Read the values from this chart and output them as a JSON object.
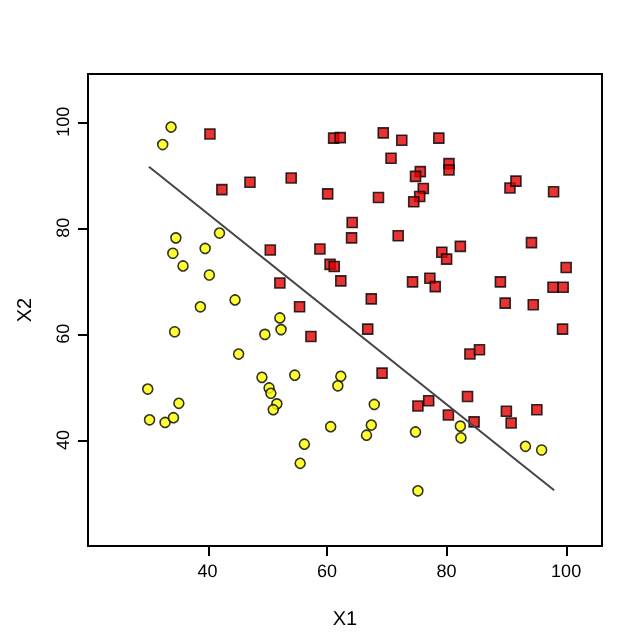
{
  "chart_data": {
    "type": "scatter",
    "xlabel": "X1",
    "ylabel": "X2",
    "xlim": [
      20,
      106
    ],
    "ylim": [
      20,
      109
    ],
    "xticks": [
      40,
      60,
      80,
      100
    ],
    "yticks": [
      40,
      60,
      80,
      100
    ],
    "grid": false,
    "series": [
      {
        "marker": "circle",
        "color": "#ffff00",
        "x": [
          33.9,
          32.5,
          34.7,
          34.2,
          35.9,
          40.3,
          39.6,
          42.0,
          38.8,
          44.6,
          52.1,
          52.3,
          49.6,
          34.5,
          45.2,
          30.0,
          49.1,
          50.3,
          50.6,
          35.2,
          54.6,
          51.6,
          51.0,
          30.3,
          32.9,
          34.3,
          60.6,
          56.2,
          55.5,
          62.3,
          61.8,
          67.9,
          67.4,
          66.6,
          74.8,
          75.2,
          82.3,
          82.4,
          93.2,
          95.9
        ],
        "values": [
          99.0,
          95.7,
          78.1,
          75.2,
          72.8,
          71.1,
          76.1,
          79.0,
          65.1,
          66.4,
          63.0,
          60.8,
          59.9,
          60.4,
          56.2,
          49.6,
          51.8,
          49.8,
          48.8,
          46.9,
          52.2,
          46.8,
          45.7,
          43.8,
          43.3,
          44.2,
          42.5,
          39.2,
          35.6,
          52.0,
          50.2,
          46.7,
          42.8,
          40.9,
          41.5,
          30.4,
          42.6,
          40.4,
          38.8,
          38.1
        ]
      },
      {
        "marker": "square",
        "color": "#e00000",
        "x": [
          40.4,
          42.4,
          47.1,
          54.0,
          60.1,
          61.1,
          50.5,
          58.8,
          60.5,
          61.2,
          52.1,
          55.4,
          57.3,
          62.2,
          69.4,
          72.5,
          78.7,
          70.7,
          75.6,
          74.8,
          80.4,
          80.4,
          76.1,
          75.5,
          74.5,
          68.6,
          90.6,
          91.6,
          97.9,
          64.2,
          64.1,
          71.9,
          79.2,
          80.0,
          82.3,
          94.2,
          62.3,
          74.3,
          77.2,
          78.1,
          89.0,
          100.0,
          97.8,
          99.5,
          67.4,
          89.8,
          94.5,
          66.8,
          99.4,
          83.9,
          85.5,
          69.2,
          75.2,
          77.0,
          80.3,
          83.5,
          84.6,
          90.0,
          90.8,
          95.1
        ],
        "values": [
          97.7,
          87.2,
          88.6,
          89.4,
          86.4,
          96.9,
          75.8,
          76.0,
          73.1,
          72.7,
          69.6,
          65.1,
          59.5,
          97.0,
          97.9,
          96.5,
          96.9,
          93.1,
          90.6,
          89.7,
          92.1,
          90.9,
          87.4,
          85.9,
          84.9,
          85.7,
          87.5,
          88.8,
          86.8,
          81.0,
          78.1,
          78.5,
          75.4,
          74.1,
          76.5,
          77.2,
          70.0,
          69.8,
          70.5,
          68.9,
          69.8,
          72.5,
          68.8,
          68.8,
          66.6,
          65.8,
          65.5,
          60.9,
          60.9,
          56.2,
          57.0,
          52.6,
          46.4,
          47.4,
          44.7,
          48.2,
          43.4,
          45.4,
          43.2,
          45.7
        ]
      },
      {
        "type": "line",
        "marker": "none",
        "line_style": "solid",
        "color": "#444444",
        "x": [
          30.2,
          98.0
        ],
        "values": [
          91.5,
          30.5
        ]
      }
    ]
  }
}
